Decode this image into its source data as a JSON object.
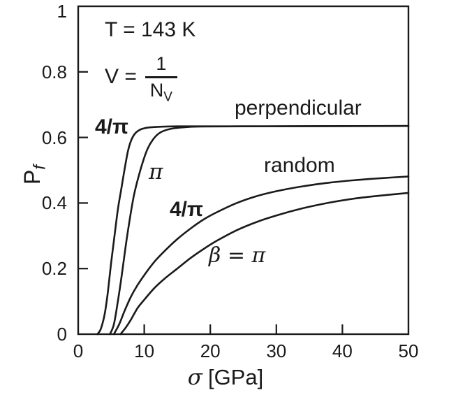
{
  "chart_data": {
    "type": "line",
    "title": "",
    "xlabel_symbol": "σ",
    "xlabel_unit": "[GPa]",
    "ylabel_main": "P",
    "ylabel_sub": "f",
    "xlim": [
      0,
      50
    ],
    "ylim": [
      0,
      1
    ],
    "grid": false,
    "frame": "full-box",
    "background_color": "#ffffff",
    "line_color": "#1a1a1a",
    "x_ticks": [
      {
        "value": 0,
        "label": "0"
      },
      {
        "value": 10,
        "label": "10"
      },
      {
        "value": 20,
        "label": "20"
      },
      {
        "value": 30,
        "label": "30"
      },
      {
        "value": 40,
        "label": "40"
      },
      {
        "value": 50,
        "label": "50"
      }
    ],
    "y_ticks": [
      {
        "value": 0,
        "label": "0"
      },
      {
        "value": 0.2,
        "label": "0.2"
      },
      {
        "value": 0.4,
        "label": "0.4"
      },
      {
        "value": 0.6,
        "label": "0.6"
      },
      {
        "value": 0.8,
        "label": "0.8"
      },
      {
        "value": 1,
        "label": "1"
      }
    ],
    "plateau_value": 0.635,
    "series": [
      {
        "name": "perpendicular-4-over-pi",
        "label": "4/π",
        "group": "perpendicular",
        "points": [
          [
            2.9,
            0
          ],
          [
            3.4,
            0.015
          ],
          [
            4.0,
            0.06
          ],
          [
            4.5,
            0.13
          ],
          [
            5.0,
            0.22
          ],
          [
            5.5,
            0.3
          ],
          [
            6.0,
            0.38
          ],
          [
            6.5,
            0.44
          ],
          [
            7.0,
            0.5
          ],
          [
            7.5,
            0.555
          ],
          [
            8.0,
            0.59
          ],
          [
            8.6,
            0.612
          ],
          [
            9.3,
            0.623
          ],
          [
            10,
            0.628
          ],
          [
            11,
            0.631
          ],
          [
            13,
            0.633
          ],
          [
            16,
            0.634
          ],
          [
            25,
            0.634
          ],
          [
            50,
            0.635
          ]
        ]
      },
      {
        "name": "perpendicular-pi",
        "label": "π",
        "group": "perpendicular",
        "points": [
          [
            4.8,
            0
          ],
          [
            5.4,
            0.03
          ],
          [
            6.0,
            0.1
          ],
          [
            6.6,
            0.18
          ],
          [
            7.2,
            0.27
          ],
          [
            7.8,
            0.35
          ],
          [
            8.4,
            0.42
          ],
          [
            9.0,
            0.47
          ],
          [
            9.7,
            0.52
          ],
          [
            10.5,
            0.565
          ],
          [
            11.3,
            0.593
          ],
          [
            12.2,
            0.612
          ],
          [
            13.2,
            0.622
          ],
          [
            14.5,
            0.628
          ],
          [
            16,
            0.631
          ],
          [
            18,
            0.633
          ],
          [
            25,
            0.634
          ],
          [
            50,
            0.635
          ]
        ]
      },
      {
        "name": "random-4-over-pi",
        "label": "4/π",
        "group": "random",
        "points": [
          [
            5.4,
            0
          ],
          [
            6.2,
            0.03
          ],
          [
            7.0,
            0.07
          ],
          [
            8.0,
            0.115
          ],
          [
            9.0,
            0.15
          ],
          [
            10,
            0.18
          ],
          [
            11.5,
            0.22
          ],
          [
            13,
            0.252
          ],
          [
            15,
            0.29
          ],
          [
            17,
            0.322
          ],
          [
            19,
            0.35
          ],
          [
            21,
            0.372
          ],
          [
            24,
            0.4
          ],
          [
            27,
            0.421
          ],
          [
            30,
            0.436
          ],
          [
            34,
            0.451
          ],
          [
            38,
            0.462
          ],
          [
            42,
            0.47
          ],
          [
            46,
            0.476
          ],
          [
            50,
            0.481
          ]
        ]
      },
      {
        "name": "random-beta-pi",
        "label": "β = π",
        "group": "random",
        "points": [
          [
            6.4,
            0
          ],
          [
            7.2,
            0.02
          ],
          [
            8.0,
            0.045
          ],
          [
            9.0,
            0.08
          ],
          [
            10,
            0.105
          ],
          [
            11.5,
            0.14
          ],
          [
            13,
            0.168
          ],
          [
            15,
            0.2
          ],
          [
            17,
            0.232
          ],
          [
            19,
            0.26
          ],
          [
            21,
            0.285
          ],
          [
            24,
            0.317
          ],
          [
            27,
            0.342
          ],
          [
            30,
            0.362
          ],
          [
            34,
            0.384
          ],
          [
            38,
            0.401
          ],
          [
            42,
            0.414
          ],
          [
            46,
            0.423
          ],
          [
            50,
            0.431
          ]
        ]
      }
    ],
    "annotations": {
      "temperature": "T = 143 K",
      "volume_lhs": "V =",
      "volume_numerator": "1",
      "volume_denominator_main": "N",
      "volume_denominator_sub": "V",
      "group_perpendicular": "perpendicular",
      "group_random": "random",
      "perp_4pi": "4/π",
      "perp_pi": "π",
      "random_4pi": "4/π",
      "beta_pi": "β = π"
    }
  }
}
